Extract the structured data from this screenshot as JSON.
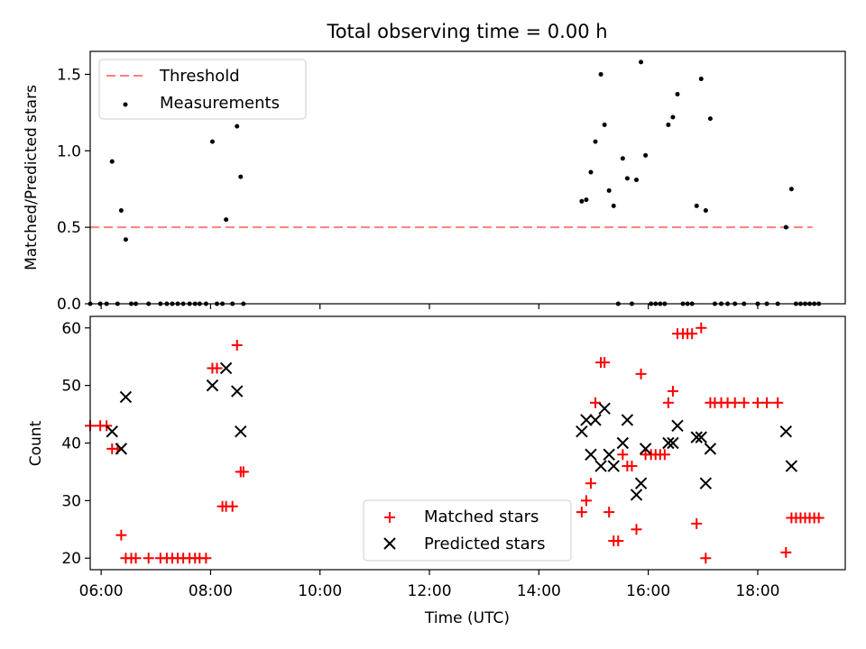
{
  "figure": {
    "title": "Total observing time = 0.00 h"
  },
  "chart_data": [
    {
      "type": "scatter",
      "panel": "top",
      "ylabel": "Matched/Predicted stars",
      "xlabel": "",
      "xlim": [
        "05:48",
        "19:36"
      ],
      "ylim": [
        0,
        1.65
      ],
      "yticks": [
        0.0,
        0.5,
        1.0,
        1.5
      ],
      "ytick_labels": [
        "0.0",
        "0.5",
        "1.0",
        "1.5"
      ],
      "grid": false,
      "legend_position": "top-left",
      "threshold": {
        "name": "Threshold",
        "value": 0.5,
        "x_range": [
          "05:48",
          "19:00"
        ],
        "color": "#ff7f7f",
        "style": "dashed"
      },
      "series": [
        {
          "name": "Measurements",
          "color": "#000000",
          "marker": "dot",
          "points": [
            {
              "x": "05:48",
              "y": 0.0
            },
            {
              "x": "05:59",
              "y": 0.0
            },
            {
              "x": "06:06",
              "y": 0.0
            },
            {
              "x": "06:12",
              "y": 0.93
            },
            {
              "x": "06:18",
              "y": 0.0
            },
            {
              "x": "06:22",
              "y": 0.61
            },
            {
              "x": "06:27",
              "y": 0.42
            },
            {
              "x": "06:33",
              "y": 0.0
            },
            {
              "x": "06:38",
              "y": 0.0
            },
            {
              "x": "06:52",
              "y": 0.0
            },
            {
              "x": "07:05",
              "y": 0.0
            },
            {
              "x": "07:12",
              "y": 0.0
            },
            {
              "x": "07:18",
              "y": 0.0
            },
            {
              "x": "07:24",
              "y": 0.0
            },
            {
              "x": "07:30",
              "y": 0.0
            },
            {
              "x": "07:37",
              "y": 0.0
            },
            {
              "x": "07:43",
              "y": 0.0
            },
            {
              "x": "07:48",
              "y": 0.0
            },
            {
              "x": "07:55",
              "y": 0.0
            },
            {
              "x": "08:02",
              "y": 1.06
            },
            {
              "x": "08:07",
              "y": 0.0
            },
            {
              "x": "08:13",
              "y": 0.0
            },
            {
              "x": "08:17",
              "y": 0.55
            },
            {
              "x": "08:24",
              "y": 0.0
            },
            {
              "x": "08:29",
              "y": 1.16
            },
            {
              "x": "08:33",
              "y": 0.83
            },
            {
              "x": "08:36",
              "y": 0.0
            },
            {
              "x": "14:47",
              "y": 0.67
            },
            {
              "x": "14:52",
              "y": 0.68
            },
            {
              "x": "14:57",
              "y": 0.86
            },
            {
              "x": "15:02",
              "y": 1.06
            },
            {
              "x": "15:08",
              "y": 1.5
            },
            {
              "x": "15:12",
              "y": 1.17
            },
            {
              "x": "15:17",
              "y": 0.74
            },
            {
              "x": "15:22",
              "y": 0.64
            },
            {
              "x": "15:27",
              "y": 0.0
            },
            {
              "x": "15:32",
              "y": 0.95
            },
            {
              "x": "15:37",
              "y": 0.82
            },
            {
              "x": "15:42",
              "y": 0.0
            },
            {
              "x": "15:47",
              "y": 0.81
            },
            {
              "x": "15:52",
              "y": 1.58
            },
            {
              "x": "15:57",
              "y": 0.97
            },
            {
              "x": "16:03",
              "y": 0.0
            },
            {
              "x": "16:08",
              "y": 0.0
            },
            {
              "x": "16:13",
              "y": 0.0
            },
            {
              "x": "16:18",
              "y": 0.0
            },
            {
              "x": "16:22",
              "y": 1.17
            },
            {
              "x": "16:27",
              "y": 1.22
            },
            {
              "x": "16:32",
              "y": 1.37
            },
            {
              "x": "16:38",
              "y": 0.0
            },
            {
              "x": "16:43",
              "y": 0.0
            },
            {
              "x": "16:48",
              "y": 0.0
            },
            {
              "x": "16:53",
              "y": 0.64
            },
            {
              "x": "16:58",
              "y": 1.47
            },
            {
              "x": "17:03",
              "y": 0.61
            },
            {
              "x": "17:08",
              "y": 1.21
            },
            {
              "x": "17:13",
              "y": 0.0
            },
            {
              "x": "17:20",
              "y": 0.0
            },
            {
              "x": "17:27",
              "y": 0.0
            },
            {
              "x": "17:35",
              "y": 0.0
            },
            {
              "x": "17:45",
              "y": 0.0
            },
            {
              "x": "18:00",
              "y": 0.0
            },
            {
              "x": "18:10",
              "y": 0.0
            },
            {
              "x": "18:22",
              "y": 0.0
            },
            {
              "x": "18:31",
              "y": 0.5
            },
            {
              "x": "18:37",
              "y": 0.75
            },
            {
              "x": "18:42",
              "y": 0.0
            },
            {
              "x": "18:47",
              "y": 0.0
            },
            {
              "x": "18:52",
              "y": 0.0
            },
            {
              "x": "18:57",
              "y": 0.0
            },
            {
              "x": "19:02",
              "y": 0.0
            },
            {
              "x": "19:07",
              "y": 0.0
            }
          ]
        }
      ]
    },
    {
      "type": "scatter",
      "panel": "bottom",
      "ylabel": "Count",
      "xlabel": "Time (UTC)",
      "xlim": [
        "05:48",
        "19:36"
      ],
      "ylim": [
        18,
        62
      ],
      "yticks": [
        20,
        30,
        40,
        50,
        60
      ],
      "ytick_labels": [
        "20",
        "30",
        "40",
        "50",
        "60"
      ],
      "xticks": [
        "06:00",
        "08:00",
        "10:00",
        "12:00",
        "14:00",
        "16:00",
        "18:00"
      ],
      "xtick_labels": [
        "06:00",
        "08:00",
        "10:00",
        "12:00",
        "14:00",
        "16:00",
        "18:00"
      ],
      "grid": false,
      "legend_position": "lower-center",
      "series": [
        {
          "name": "Matched stars",
          "color": "#ff0000",
          "marker": "plus",
          "points": [
            {
              "x": "05:48",
              "y": 43
            },
            {
              "x": "05:59",
              "y": 43
            },
            {
              "x": "06:06",
              "y": 43
            },
            {
              "x": "06:12",
              "y": 39
            },
            {
              "x": "06:18",
              "y": 39
            },
            {
              "x": "06:22",
              "y": 24
            },
            {
              "x": "06:27",
              "y": 20
            },
            {
              "x": "06:33",
              "y": 20
            },
            {
              "x": "06:38",
              "y": 20
            },
            {
              "x": "06:52",
              "y": 20
            },
            {
              "x": "07:05",
              "y": 20
            },
            {
              "x": "07:12",
              "y": 20
            },
            {
              "x": "07:18",
              "y": 20
            },
            {
              "x": "07:24",
              "y": 20
            },
            {
              "x": "07:30",
              "y": 20
            },
            {
              "x": "07:37",
              "y": 20
            },
            {
              "x": "07:43",
              "y": 20
            },
            {
              "x": "07:48",
              "y": 20
            },
            {
              "x": "07:55",
              "y": 20
            },
            {
              "x": "08:02",
              "y": 53
            },
            {
              "x": "08:07",
              "y": 53
            },
            {
              "x": "08:13",
              "y": 29
            },
            {
              "x": "08:17",
              "y": 29
            },
            {
              "x": "08:24",
              "y": 29
            },
            {
              "x": "08:29",
              "y": 57
            },
            {
              "x": "08:33",
              "y": 35
            },
            {
              "x": "08:36",
              "y": 35
            },
            {
              "x": "14:47",
              "y": 28
            },
            {
              "x": "14:52",
              "y": 30
            },
            {
              "x": "14:57",
              "y": 33
            },
            {
              "x": "15:02",
              "y": 47
            },
            {
              "x": "15:08",
              "y": 54
            },
            {
              "x": "15:12",
              "y": 54
            },
            {
              "x": "15:17",
              "y": 28
            },
            {
              "x": "15:22",
              "y": 23
            },
            {
              "x": "15:27",
              "y": 23
            },
            {
              "x": "15:32",
              "y": 38
            },
            {
              "x": "15:37",
              "y": 36
            },
            {
              "x": "15:42",
              "y": 36
            },
            {
              "x": "15:47",
              "y": 25
            },
            {
              "x": "15:52",
              "y": 52
            },
            {
              "x": "15:57",
              "y": 38
            },
            {
              "x": "16:03",
              "y": 38
            },
            {
              "x": "16:08",
              "y": 38
            },
            {
              "x": "16:13",
              "y": 38
            },
            {
              "x": "16:18",
              "y": 38
            },
            {
              "x": "16:22",
              "y": 47
            },
            {
              "x": "16:27",
              "y": 49
            },
            {
              "x": "16:32",
              "y": 59
            },
            {
              "x": "16:38",
              "y": 59
            },
            {
              "x": "16:43",
              "y": 59
            },
            {
              "x": "16:48",
              "y": 59
            },
            {
              "x": "16:53",
              "y": 26
            },
            {
              "x": "16:58",
              "y": 60
            },
            {
              "x": "17:03",
              "y": 20
            },
            {
              "x": "17:08",
              "y": 47
            },
            {
              "x": "17:13",
              "y": 47
            },
            {
              "x": "17:20",
              "y": 47
            },
            {
              "x": "17:27",
              "y": 47
            },
            {
              "x": "17:35",
              "y": 47
            },
            {
              "x": "17:45",
              "y": 47
            },
            {
              "x": "18:00",
              "y": 47
            },
            {
              "x": "18:10",
              "y": 47
            },
            {
              "x": "18:22",
              "y": 47
            },
            {
              "x": "18:31",
              "y": 21
            },
            {
              "x": "18:37",
              "y": 27
            },
            {
              "x": "18:42",
              "y": 27
            },
            {
              "x": "18:47",
              "y": 27
            },
            {
              "x": "18:52",
              "y": 27
            },
            {
              "x": "18:57",
              "y": 27
            },
            {
              "x": "19:02",
              "y": 27
            },
            {
              "x": "19:07",
              "y": 27
            }
          ]
        },
        {
          "name": "Predicted stars",
          "color": "#000000",
          "marker": "x",
          "points": [
            {
              "x": "06:12",
              "y": 42
            },
            {
              "x": "06:22",
              "y": 39
            },
            {
              "x": "06:27",
              "y": 48
            },
            {
              "x": "08:02",
              "y": 50
            },
            {
              "x": "08:17",
              "y": 53
            },
            {
              "x": "08:29",
              "y": 49
            },
            {
              "x": "08:33",
              "y": 42
            },
            {
              "x": "14:47",
              "y": 42
            },
            {
              "x": "14:52",
              "y": 44
            },
            {
              "x": "14:57",
              "y": 38
            },
            {
              "x": "15:02",
              "y": 44
            },
            {
              "x": "15:08",
              "y": 36
            },
            {
              "x": "15:12",
              "y": 46
            },
            {
              "x": "15:17",
              "y": 38
            },
            {
              "x": "15:22",
              "y": 36
            },
            {
              "x": "15:32",
              "y": 40
            },
            {
              "x": "15:37",
              "y": 44
            },
            {
              "x": "15:47",
              "y": 31
            },
            {
              "x": "15:52",
              "y": 33
            },
            {
              "x": "15:57",
              "y": 39
            },
            {
              "x": "16:22",
              "y": 40
            },
            {
              "x": "16:27",
              "y": 40
            },
            {
              "x": "16:32",
              "y": 43
            },
            {
              "x": "16:53",
              "y": 41
            },
            {
              "x": "16:58",
              "y": 41
            },
            {
              "x": "17:03",
              "y": 33
            },
            {
              "x": "17:08",
              "y": 39
            },
            {
              "x": "18:31",
              "y": 42
            },
            {
              "x": "18:37",
              "y": 36
            }
          ]
        }
      ]
    }
  ]
}
